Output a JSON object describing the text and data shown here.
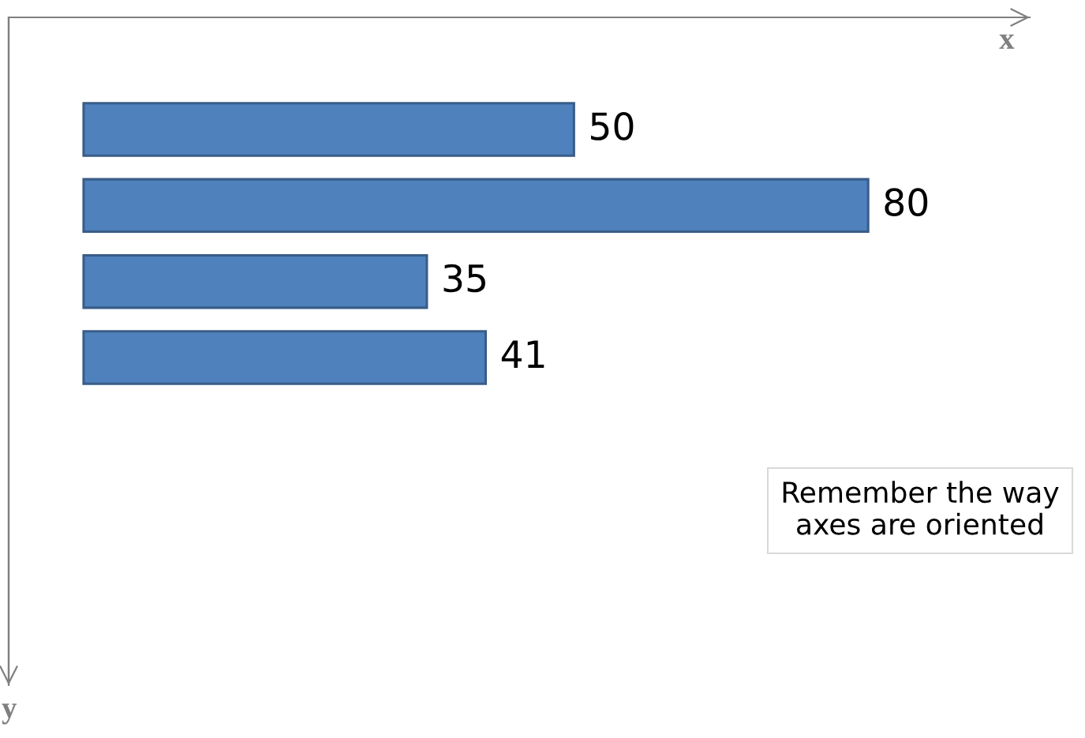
{
  "chart_data": {
    "type": "bar",
    "orientation": "horizontal",
    "categories": [
      null,
      null,
      null,
      null
    ],
    "values": [
      50,
      80,
      35,
      41
    ],
    "color": "#4f81bd",
    "data_labels": true,
    "xlabel": "x",
    "tick_labels": false,
    "grid": false,
    "annotations": [
      "Remember the way\naxes are oriented",
      "y"
    ]
  }
}
